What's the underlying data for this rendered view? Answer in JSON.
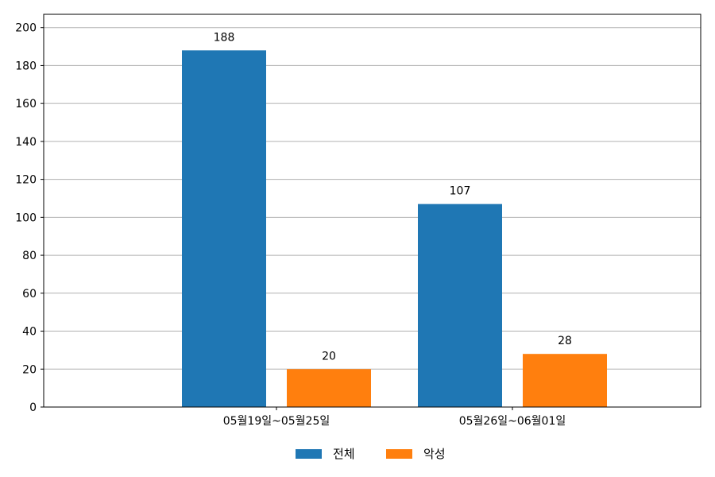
{
  "chart_data": {
    "type": "bar",
    "categories": [
      "05월19일~05월25일",
      "05월26일~06월01일"
    ],
    "series": [
      {
        "name": "전체",
        "values": [
          188,
          107
        ],
        "color": "#1f77b4"
      },
      {
        "name": "악성",
        "values": [
          20,
          28
        ],
        "color": "#ff7f0e"
      }
    ],
    "ylim": [
      0,
      207
    ],
    "yticks": [
      0,
      20,
      40,
      60,
      80,
      100,
      120,
      140,
      160,
      180,
      200
    ],
    "grid": "y",
    "legend_position": "bottom-center"
  }
}
